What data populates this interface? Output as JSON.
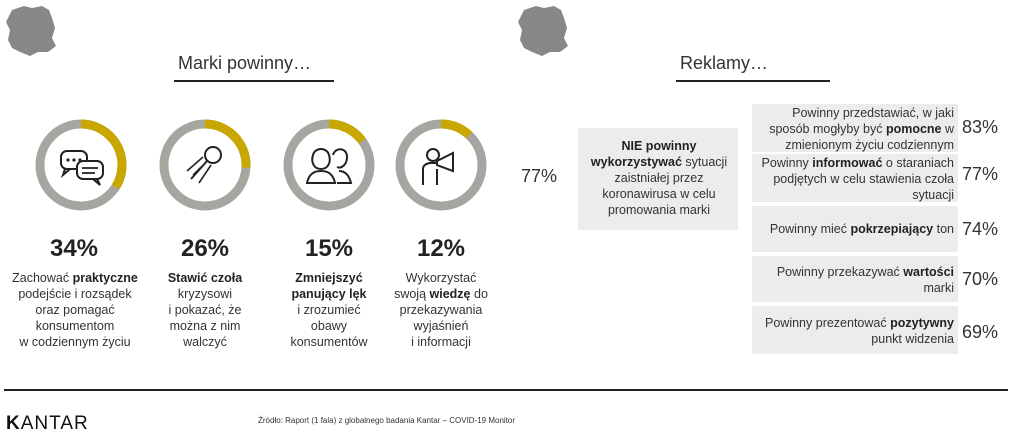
{
  "headings": {
    "left": "Marki powinny…",
    "right": "Reklamy…"
  },
  "colors": {
    "accent": "#c8a800",
    "ring": "#a6a6a0",
    "box": "#ececec",
    "map": "#888888",
    "dark": "#222222"
  },
  "brands": [
    {
      "icon": "chat-bubbles-icon",
      "percent": 34,
      "percent_label": "34%",
      "lines": [
        [
          {
            "t": "Zachować "
          },
          {
            "t": "praktyczne",
            "b": true
          }
        ],
        [
          {
            "t": "podejście i rozsądek"
          }
        ],
        [
          {
            "t": "oraz pomagać"
          }
        ],
        [
          {
            "t": "konsumentom"
          }
        ],
        [
          {
            "t": "w codziennym życiu"
          }
        ]
      ]
    },
    {
      "icon": "comet-icon",
      "percent": 26,
      "percent_label": "26%",
      "lines": [
        [
          {
            "t": "Stawić czoła",
            "b": true
          }
        ],
        [
          {
            "t": "kryzysowi"
          }
        ],
        [
          {
            "t": "i pokazać, że"
          }
        ],
        [
          {
            "t": "można z nim"
          }
        ],
        [
          {
            "t": "walczyć"
          }
        ]
      ]
    },
    {
      "icon": "people-icon",
      "percent": 15,
      "percent_label": "15%",
      "lines": [
        [
          {
            "t": "Zmniejszyć",
            "b": true
          }
        ],
        [
          {
            "t": "panujący lęk",
            "b": true
          }
        ],
        [
          {
            "t": "i zrozumieć"
          }
        ],
        [
          {
            "t": "obawy"
          }
        ],
        [
          {
            "t": "konsumentów"
          }
        ]
      ]
    },
    {
      "icon": "megaphone-person-icon",
      "percent": 12,
      "percent_label": "12%",
      "lines": [
        [
          {
            "t": "Wykorzystać"
          }
        ],
        [
          {
            "t": "swoją "
          },
          {
            "t": "wiedzę",
            "b": true
          },
          {
            "t": " do"
          }
        ],
        [
          {
            "t": "przekazywania"
          }
        ],
        [
          {
            "t": "wyjaśnień"
          }
        ],
        [
          {
            "t": "i informacji"
          }
        ]
      ]
    }
  ],
  "ads_left": {
    "percent_label": "77%",
    "lines": [
      [
        {
          "t": "NIE powinny",
          "b": true
        }
      ],
      [
        {
          "t": "wykorzystywać",
          "b": true
        },
        {
          "t": " sytuacji"
        }
      ],
      [
        {
          "t": "zaistniałej przez"
        }
      ],
      [
        {
          "t": "koronawirusa w celu"
        }
      ],
      [
        {
          "t": "promowania marki"
        }
      ]
    ]
  },
  "ads_right": [
    {
      "percent_label": "83%",
      "lines": [
        [
          {
            "t": "Powinny przedstawiać, w jaki"
          }
        ],
        [
          {
            "t": "sposób mogłyby być "
          },
          {
            "t": "pomocne",
            "b": true
          },
          {
            "t": " w"
          }
        ],
        [
          {
            "t": "zmienionym życiu codziennym"
          }
        ]
      ]
    },
    {
      "percent_label": "77%",
      "lines": [
        [
          {
            "t": "Powinny "
          },
          {
            "t": "informować",
            "b": true
          },
          {
            "t": " o staraniach"
          }
        ],
        [
          {
            "t": "podjętych w celu stawienia czoła"
          }
        ],
        [
          {
            "t": "sytuacji"
          }
        ]
      ]
    },
    {
      "percent_label": "74%",
      "lines": [
        [
          {
            "t": "Powinny mieć "
          },
          {
            "t": "pokrzepiający",
            "b": true
          },
          {
            "t": " ton"
          }
        ]
      ]
    },
    {
      "percent_label": "70%",
      "lines": [
        [
          {
            "t": "Powinny przekazywać "
          },
          {
            "t": "wartości",
            "b": true
          }
        ],
        [
          {
            "t": "marki"
          }
        ]
      ]
    },
    {
      "percent_label": "69%",
      "lines": [
        [
          {
            "t": "Powinny prezentować "
          },
          {
            "t": "pozytywny",
            "b": true
          }
        ],
        [
          {
            "t": "punkt widzenia"
          }
        ]
      ]
    }
  ],
  "footer": {
    "logo": "KANTAR",
    "source": "Źródło: Raport (1 fala) z globalnego  badania Kantar – COVID-19 Monitor"
  }
}
